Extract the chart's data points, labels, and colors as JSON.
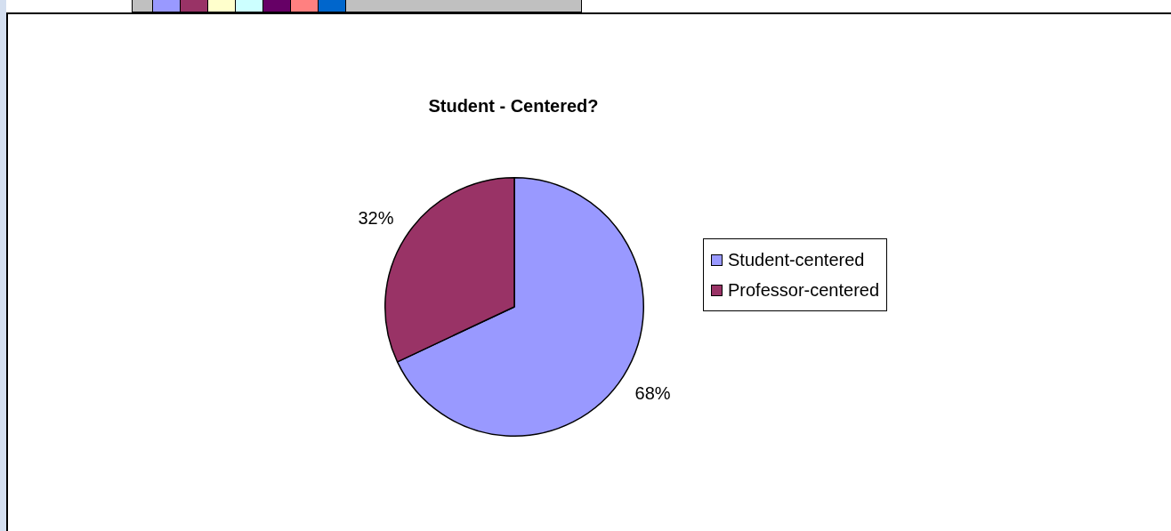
{
  "chart_data": {
    "type": "pie",
    "title": "Student - Centered?",
    "categories": [
      "Student-centered",
      "Professor-centered"
    ],
    "values": [
      68,
      32
    ],
    "colors": [
      "#9999ff",
      "#993366"
    ],
    "value_labels": [
      "68%",
      "32%"
    ],
    "legend": "right"
  }
}
